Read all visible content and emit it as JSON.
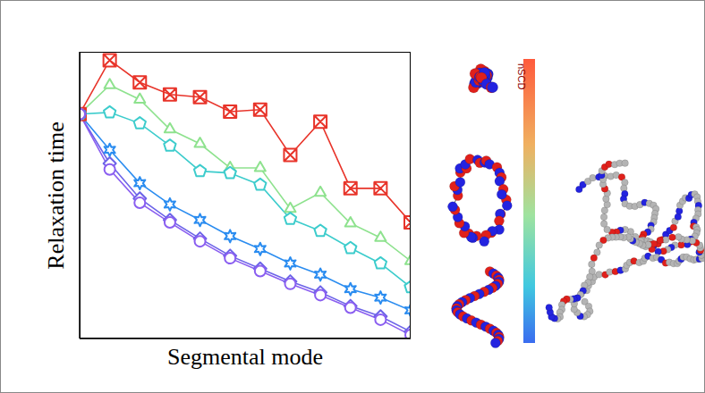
{
  "chart_data": {
    "type": "line",
    "x_label": "Segmental mode",
    "y_label": "Relaxation time",
    "x": [
      1,
      2,
      3,
      4,
      5,
      6,
      7,
      8,
      9,
      10,
      11,
      12
    ],
    "xlim": [
      1,
      12
    ],
    "ylim": [
      0,
      105
    ],
    "tick_labels": false,
    "colorbar_label": "nSCD",
    "series": [
      {
        "color": "#e8342a",
        "marker": "hourglass",
        "values": [
          82.2,
          101.9,
          93.8,
          89.4,
          88.4,
          83.1,
          83.8,
          67.2,
          79.4,
          55.0,
          55.0,
          42.5
        ]
      },
      {
        "color": "#8ee28e",
        "marker": "triangle",
        "values": [
          82.2,
          92.8,
          87.5,
          76.6,
          71.3,
          62.5,
          62.5,
          47.5,
          53.4,
          42.2,
          36.9,
          28.4
        ]
      },
      {
        "color": "#3ccccc",
        "marker": "pentagon",
        "values": [
          82.2,
          82.8,
          78.8,
          70.6,
          61.3,
          60.6,
          56.3,
          43.8,
          39.4,
          33.1,
          27.5,
          18.8
        ]
      },
      {
        "color": "#2a8cf0",
        "marker": "star",
        "values": [
          82.2,
          69.1,
          56.9,
          49.1,
          43.4,
          37.5,
          32.8,
          27.5,
          23.4,
          18.1,
          15.0,
          10.3
        ]
      },
      {
        "color": "#6c63e8",
        "marker": "diamond",
        "values": [
          82.2,
          64.1,
          51.3,
          43.4,
          36.6,
          30.3,
          25.6,
          20.9,
          16.9,
          11.9,
          8.1,
          2.5
        ]
      },
      {
        "color": "#8a5ef0",
        "marker": "circle",
        "values": [
          82.2,
          61.9,
          49.7,
          42.5,
          35.6,
          29.4,
          24.7,
          20.0,
          15.9,
          11.3,
          6.9,
          1.3
        ]
      }
    ]
  }
}
